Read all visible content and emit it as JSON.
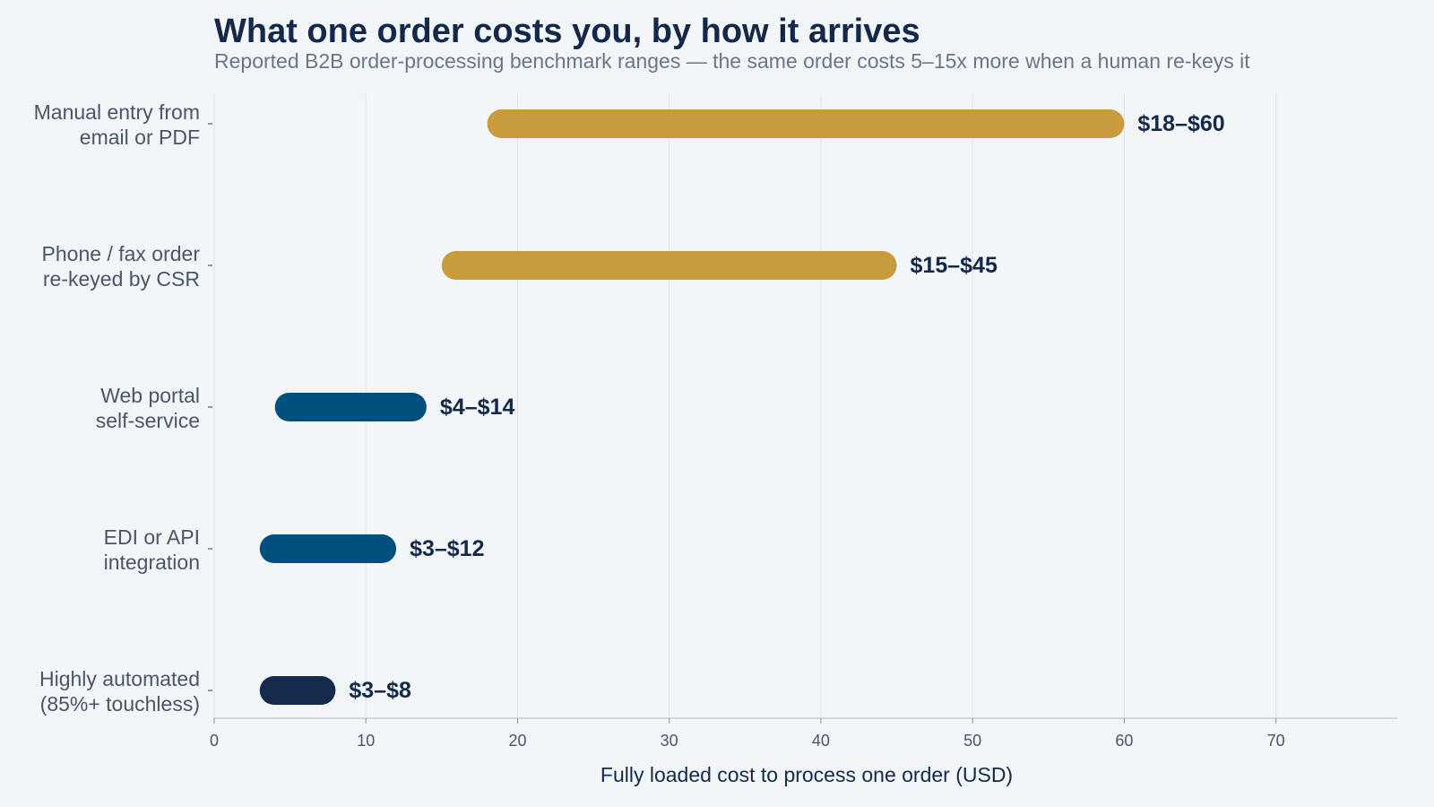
{
  "chart_data": {
    "type": "bar",
    "title": "What one order costs you, by how it arrives",
    "subtitle": "Reported B2B order-processing benchmark ranges — the same order costs 5–15x more when a human re-keys it",
    "xlabel": "Fully loaded cost to process one order (USD)",
    "ylabel": "",
    "xlim": [
      0,
      78
    ],
    "xticks": [
      0,
      10,
      20,
      30,
      40,
      50,
      60,
      70
    ],
    "grid": true,
    "orientation": "horizontal",
    "categories": [
      [
        "Manual entry from",
        "email or PDF"
      ],
      [
        "Phone / fax order",
        "re-keyed by CSR"
      ],
      [
        "Web portal",
        "self-service"
      ],
      [
        "EDI or API",
        "integration"
      ],
      [
        "Highly automated",
        "(85%+ touchless)"
      ]
    ],
    "ranges": [
      {
        "low": 18,
        "high": 60,
        "label": "$18–$60",
        "color": "#c89b3c"
      },
      {
        "low": 15,
        "high": 45,
        "label": "$15–$45",
        "color": "#c89b3c"
      },
      {
        "low": 4,
        "high": 14,
        "label": "$4–$14",
        "color": "#00507f"
      },
      {
        "low": 3,
        "high": 12,
        "label": "$3–$12",
        "color": "#00507f"
      },
      {
        "low": 3,
        "high": 8,
        "label": "$3–$8",
        "color": "#142b4c"
      }
    ]
  },
  "colors": {
    "background": "#f3f6f9",
    "manual": "#c89b3c",
    "digital": "#00507f",
    "automated": "#142b4c",
    "grid": "#e2e6ea"
  }
}
